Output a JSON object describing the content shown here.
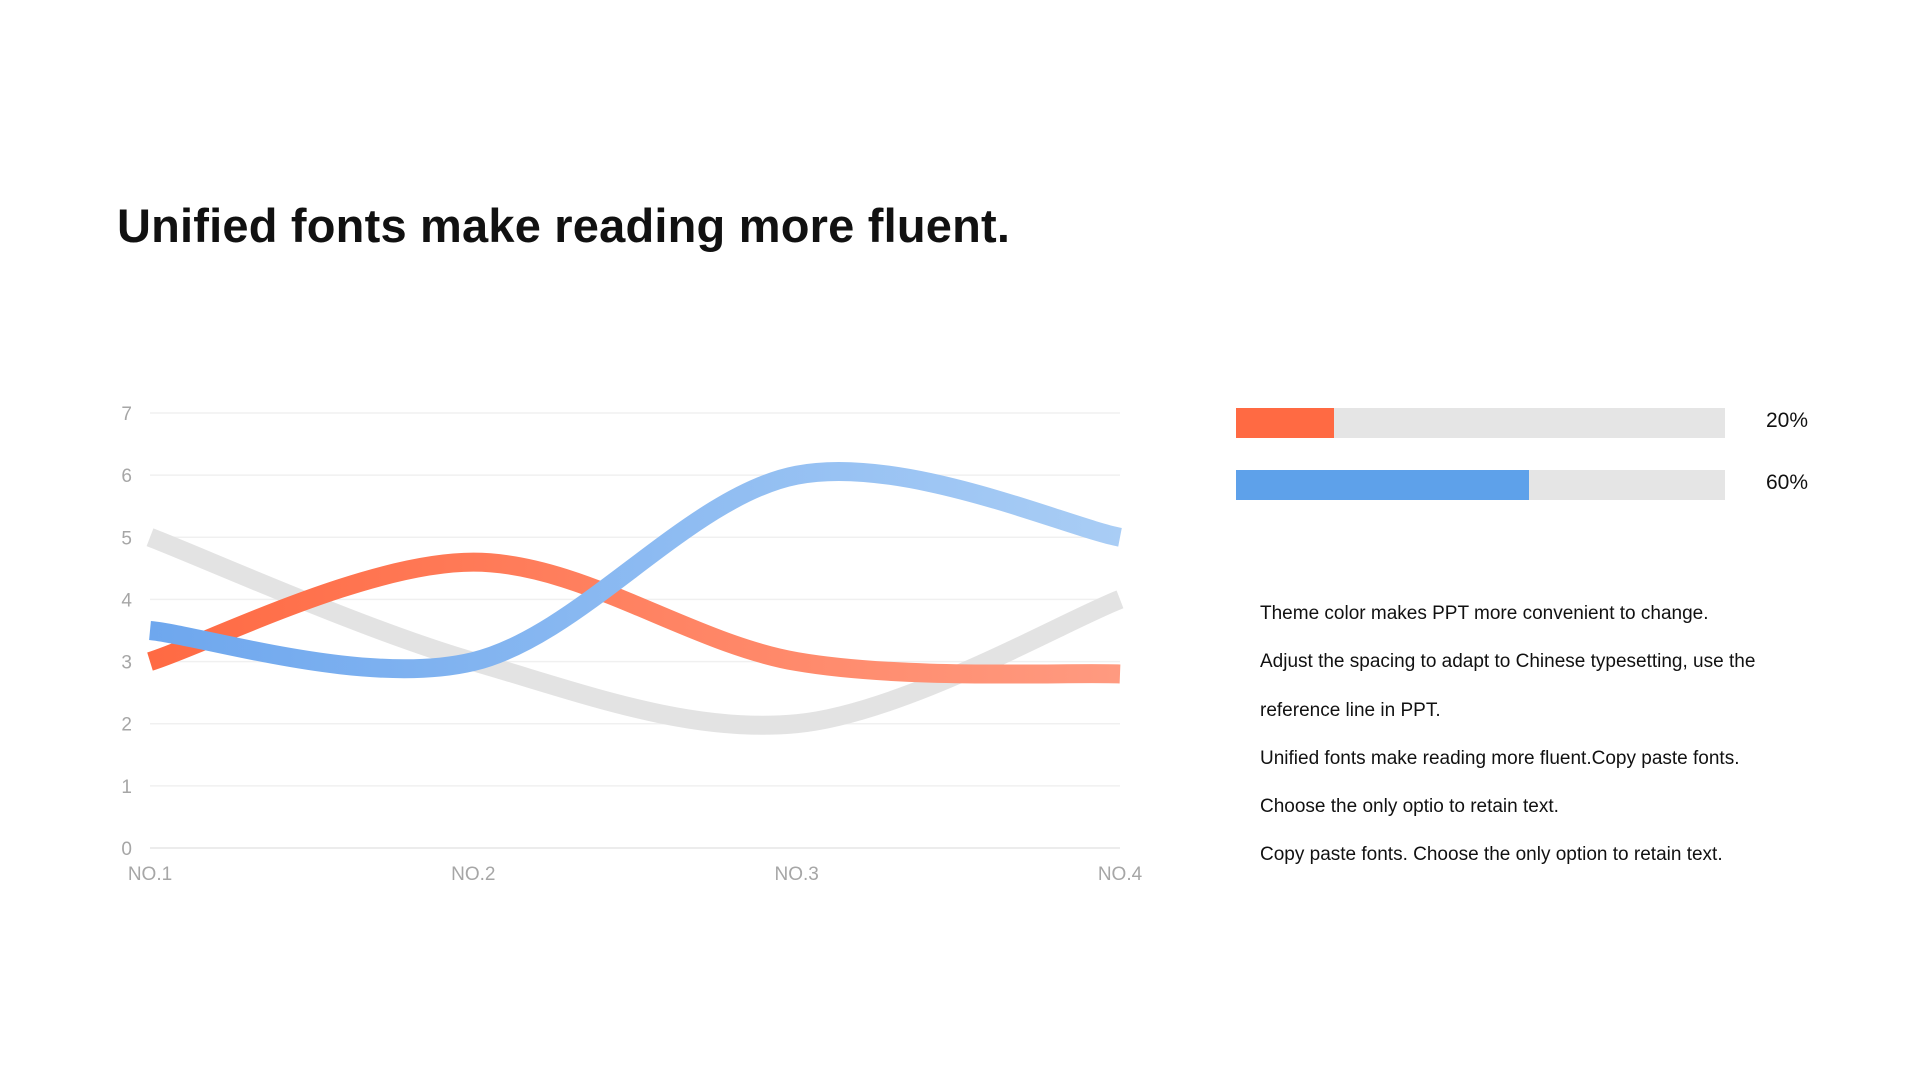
{
  "slide": {
    "title": "Unified fonts make reading more fluent."
  },
  "chart_data": {
    "type": "line",
    "title": "",
    "xlabel": "",
    "ylabel": "",
    "categories": [
      "NO.1",
      "NO.2",
      "NO.3",
      "NO.4"
    ],
    "yticks": [
      "0",
      "1",
      "2",
      "3",
      "4",
      "5",
      "6",
      "7"
    ],
    "ylim": [
      0,
      7
    ],
    "grid": true,
    "smooth": true,
    "series": [
      {
        "values": [
          5,
          3,
          2,
          4
        ],
        "colors": [
          "#e3e3e3",
          "#e3e3e3"
        ]
      },
      {
        "values": [
          3,
          4.6,
          3,
          2.8
        ],
        "colors": [
          "#ff6a43",
          "#ff9a80"
        ]
      },
      {
        "values": [
          3.5,
          3,
          6,
          5
        ],
        "colors": [
          "#6ea7ee",
          "#a9cdf5"
        ]
      }
    ]
  },
  "progress": [
    {
      "value": 0.2,
      "label": "20%",
      "color": "#ff6a43"
    },
    {
      "value": 0.6,
      "label": "60%",
      "color": "#5ea1ea"
    }
  ],
  "description": [
    "Theme color makes PPT more convenient  to change.",
    "Adjust  the spacing to adapt to Chinese  typesetting, use the",
    "reference line  in PPT.",
    "Unified  fonts make reading more fluent.Copy paste fonts.",
    "Choose  the only optio to retain text.",
    "Copy paste  fonts. Choose the only option to retain text."
  ]
}
